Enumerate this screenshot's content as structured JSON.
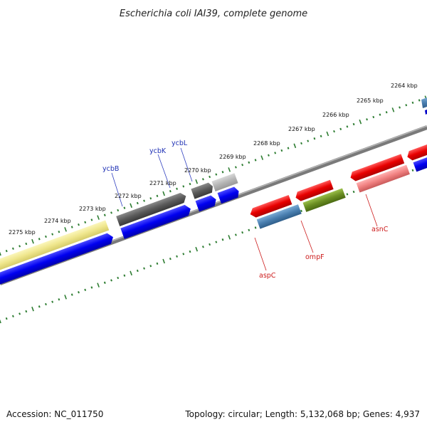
{
  "title": "Escherichia coli IAI39, complete genome",
  "footer": {
    "accession": "Accession: NC_011750",
    "summary": "Topology: circular; Length: 5,132,068 bp; Genes: 4,937"
  },
  "ruler_ticks": [
    "2264 kbp",
    "2265 kbp",
    "2266 kbp",
    "2267 kbp",
    "2268 kbp",
    "2269 kbp",
    "2270 kbp",
    "2271 kbp",
    "2272 kbp",
    "2273 kbp",
    "2274 kbp",
    "2275 kbp"
  ],
  "gene_labels": {
    "ycbB": "ycbB",
    "ycbK": "ycbK",
    "ycbL": "ycbL",
    "aspC": "aspC",
    "ompF": "ompF",
    "asnC": "asnC"
  },
  "colors": {
    "forward_cds": "#e41a1c",
    "reverse_cds": "#0000ee",
    "gene_dark_gray": "#555555",
    "gene_light_gray": "#b0b0b0",
    "gene_yellow": "#ede58a",
    "gene_steel_blue": "#4a7fb0",
    "gene_olive": "#6b8e23",
    "gene_pink": "#f08080",
    "tick_green": "#2e7d32",
    "backbone_gray": "#808080",
    "label_blue": "#1d2fb4",
    "label_red": "#cc1a1a"
  }
}
